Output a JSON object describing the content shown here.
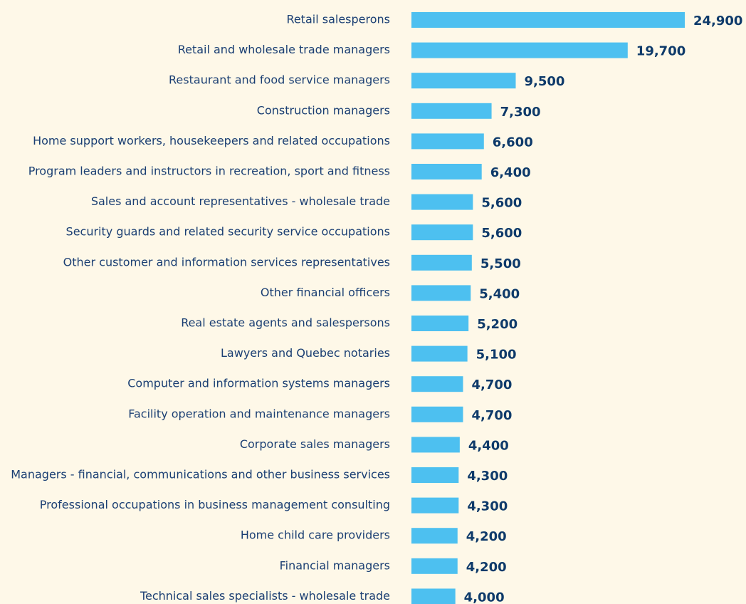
{
  "chart_data": {
    "type": "barh",
    "color": "#4dc0f0",
    "categories": [
      "Retail salesperons",
      "Retail and wholesale trade managers",
      "Restaurant and food service managers",
      "Construction managers",
      "Home support workers, housekeepers and related occupations",
      "Program leaders and instructors in recreation, sport and fitness",
      "Sales and account representatives - wholesale trade",
      "Security guards and related security service occupations",
      "Other customer and information services representatives",
      "Other financial officers",
      "Real estate agents and salespersons",
      "Lawyers and Quebec notaries",
      "Computer and information systems managers",
      "Facility operation and maintenance managers",
      "Corporate sales managers",
      "Managers - financial, communications and other business services",
      "Professional occupations in business management consulting",
      "Home child care providers",
      "Financial managers",
      "Technical sales specialists - wholesale trade"
    ],
    "values": [
      24900,
      19700,
      9500,
      7300,
      6600,
      6400,
      5600,
      5600,
      5500,
      5400,
      5200,
      5100,
      4700,
      4700,
      4400,
      4300,
      4300,
      4200,
      4200,
      4000
    ],
    "value_labels": [
      "24,900",
      "19,700",
      "9,500",
      "7,300",
      "6,600",
      "6,400",
      "5,600",
      "5,600",
      "5,500",
      "5,400",
      "5,200",
      "5,100",
      "4,700",
      "4,700",
      "4,400",
      "4,300",
      "4,300",
      "4,200",
      "4,200",
      "4,000"
    ]
  }
}
